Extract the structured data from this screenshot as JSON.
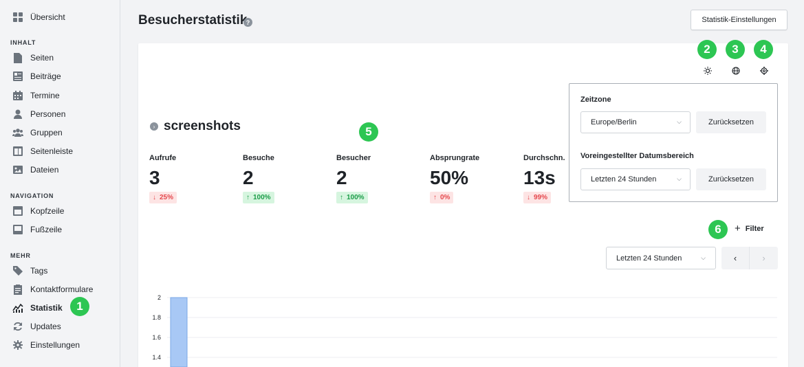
{
  "sidebar": {
    "top": {
      "label": "Übersicht",
      "icon": "grid-icon"
    },
    "sections": [
      {
        "title": "INHALT",
        "items": [
          {
            "label": "Seiten",
            "icon": "page-icon"
          },
          {
            "label": "Beiträge",
            "icon": "posts-icon"
          },
          {
            "label": "Termine",
            "icon": "calendar-icon"
          },
          {
            "label": "Personen",
            "icon": "person-icon"
          },
          {
            "label": "Gruppen",
            "icon": "group-icon"
          },
          {
            "label": "Seitenleiste",
            "icon": "sidebar-icon"
          },
          {
            "label": "Dateien",
            "icon": "image-icon"
          }
        ]
      },
      {
        "title": "NAVIGATION",
        "items": [
          {
            "label": "Kopfzeile",
            "icon": "header-icon"
          },
          {
            "label": "Fußzeile",
            "icon": "footer-icon"
          }
        ]
      },
      {
        "title": "MEHR",
        "items": [
          {
            "label": "Tags",
            "icon": "tag-icon"
          },
          {
            "label": "Kontaktformulare",
            "icon": "form-icon"
          },
          {
            "label": "Statistik",
            "icon": "stats-icon",
            "active": true
          },
          {
            "label": "Updates",
            "icon": "refresh-icon"
          },
          {
            "label": "Einstellungen",
            "icon": "gear-icon"
          }
        ]
      }
    ]
  },
  "header": {
    "title": "Besucherstatistik",
    "help": "?",
    "settings_button": "Statistik-Einstellungen"
  },
  "annotations": [
    "1",
    "2",
    "3",
    "4",
    "5",
    "6"
  ],
  "site": {
    "chevron": "›",
    "name": "screenshots"
  },
  "metrics": [
    {
      "label": "Aufrufe",
      "value": "3",
      "delta": "25%",
      "direction": "down"
    },
    {
      "label": "Besuche",
      "value": "2",
      "delta": "100%",
      "direction": "up"
    },
    {
      "label": "Besucher",
      "value": "2",
      "delta": "100%",
      "direction": "up"
    },
    {
      "label": "Absprungrate",
      "value": "50%",
      "delta": "0%",
      "direction": "up-red"
    },
    {
      "label": "Durchschn.",
      "value": "13s",
      "delta": "99%",
      "direction": "down"
    }
  ],
  "panel": {
    "timezone_label": "Zeitzone",
    "timezone_value": "Europe/Berlin",
    "reset_label": "Zurücksetzen",
    "range_label": "Voreingestellter Datumsbereich",
    "range_value": "Letzten 24 Stunden"
  },
  "filter_label": "Filter",
  "range_select": "Letzten 24 Stunden",
  "pager": {
    "prev": "‹",
    "next": "›"
  },
  "colors": {
    "accent_green": "#2dc653",
    "bar_blue": "#a8c8f5",
    "bar_border": "#7aa7e6"
  },
  "chart_data": {
    "type": "bar",
    "yticks": [
      "2",
      "1.8",
      "1.6",
      "1.4"
    ],
    "ylim": [
      1.4,
      2
    ],
    "values": [
      2
    ]
  }
}
